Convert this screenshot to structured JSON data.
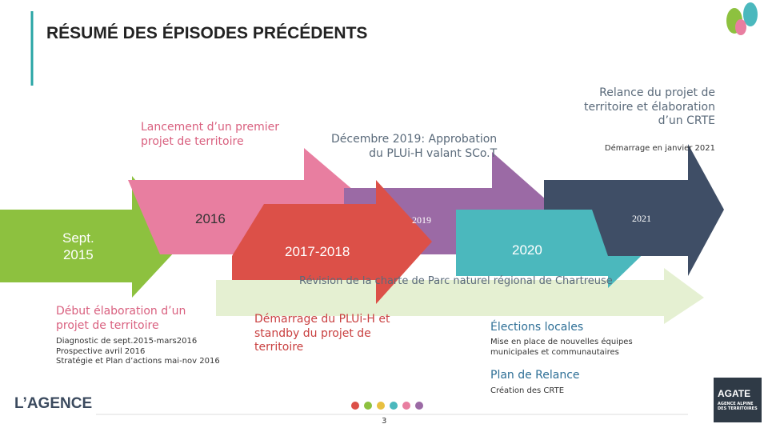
{
  "header": {
    "title": "RÉSUMÉ DES ÉPISODES PRÉCÉDENTS"
  },
  "timeline": {
    "arrows": [
      "Sept.",
      "2015",
      "2016",
      "2017-2018",
      "2019",
      "2020",
      "2021"
    ],
    "above": {
      "lancement": [
        "Lancement d’un premier",
        "projet de territoire"
      ],
      "decembre": [
        "Décembre 2019: Approbation",
        "du PLUi-H valant SCo.T"
      ],
      "relance": [
        "Relance du projet de",
        "territoire et élaboration",
        "d’un CRTE"
      ],
      "relance_detail": "Démarrage en janvier 2021"
    },
    "charte": "Révision de la charte de Parc naturel régional de Chartreuse",
    "below": {
      "debut": [
        "Début élaboration d’un",
        "projet de territoire"
      ],
      "debut_details": [
        "Diagnostic de sept.2015-mars2016",
        "Prospective avril 2016",
        "Stratégie et Plan d’actions mai-nov 2016"
      ],
      "plui": [
        "Démarrage du PLUi-H et",
        "standby du projet de",
        "territoire"
      ],
      "elections": "Élections locales",
      "elections_details": [
        "Mise en place de nouvelles équipes",
        "municipales et communautaires"
      ],
      "plan": "Plan de Relance",
      "plan_detail": "Création des CRTE"
    }
  },
  "footer": {
    "page": "3",
    "agence": "L’AGENCE",
    "agate": "AGATE",
    "agate_sub": [
      "AGENCE ALPINE",
      "DES TERRITOIRES"
    ]
  }
}
